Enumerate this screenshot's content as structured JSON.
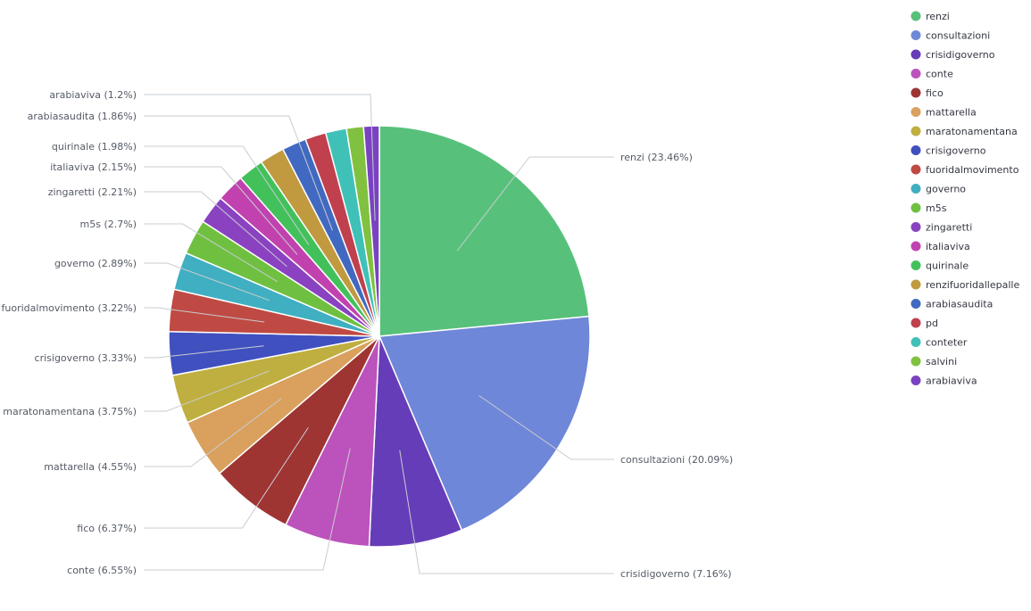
{
  "chart_data": {
    "type": "pie",
    "start_angle_deg": 0,
    "direction": "clockwise",
    "legend_position": "right",
    "slices": [
      {
        "name": "renzi",
        "label": "renzi (23.46%)",
        "value": 23.46,
        "color": "#57c17b"
      },
      {
        "name": "consultazioni",
        "label": "consultazioni (20.09%)",
        "value": 20.09,
        "color": "#6f87d8"
      },
      {
        "name": "crisidigoverno",
        "label": "crisidigoverno (7.16%)",
        "value": 7.16,
        "color": "#663db8"
      },
      {
        "name": "conte",
        "label": "conte (6.55%)",
        "value": 6.55,
        "color": "#bc52bc"
      },
      {
        "name": "fico",
        "label": "fico (6.37%)",
        "value": 6.37,
        "color": "#9e3533"
      },
      {
        "name": "mattarella",
        "label": "mattarella (4.55%)",
        "value": 4.55,
        "color": "#daa05d"
      },
      {
        "name": "maratonamentana",
        "label": "maratonamentana (3.75%)",
        "value": 3.75,
        "color": "#bfaf40"
      },
      {
        "name": "crisigoverno",
        "label": "crisigoverno (3.33%)",
        "value": 3.33,
        "color": "#4050bf"
      },
      {
        "name": "fuoridalmovimento",
        "label": "fuoridalmovimento (3.22%)",
        "value": 3.22,
        "color": "#bf4a43"
      },
      {
        "name": "governo",
        "label": "governo (2.89%)",
        "value": 2.89,
        "color": "#40afc1"
      },
      {
        "name": "m5s",
        "label": "m5s (2.7%)",
        "value": 2.7,
        "color": "#6fc040"
      },
      {
        "name": "zingaretti",
        "label": "zingaretti (2.21%)",
        "value": 2.21,
        "color": "#8a42c1"
      },
      {
        "name": "italiaviva",
        "label": "italiaviva (2.15%)",
        "value": 2.15,
        "color": "#c142af"
      },
      {
        "name": "quirinale",
        "label": "quirinale (1.98%)",
        "value": 1.98,
        "color": "#42c15b"
      },
      {
        "name": "renzifuoridallepalle",
        "label": "renzifuoridallepalle",
        "value": 1.9,
        "color": "#c19a40"
      },
      {
        "name": "arabiasaudita",
        "label": "arabiasaudita (1.86%)",
        "value": 1.86,
        "color": "#4169c1"
      },
      {
        "name": "pd",
        "label": "pd",
        "value": 1.6,
        "color": "#c1404e"
      },
      {
        "name": "conteter",
        "label": "conteter",
        "value": 1.6,
        "color": "#40c1b8"
      },
      {
        "name": "salvini",
        "label": "salvini",
        "value": 1.3,
        "color": "#80c140"
      },
      {
        "name": "arabiaviva",
        "label": "arabiaviva (1.2%)",
        "value": 1.2,
        "color": "#7a42c1"
      }
    ]
  }
}
